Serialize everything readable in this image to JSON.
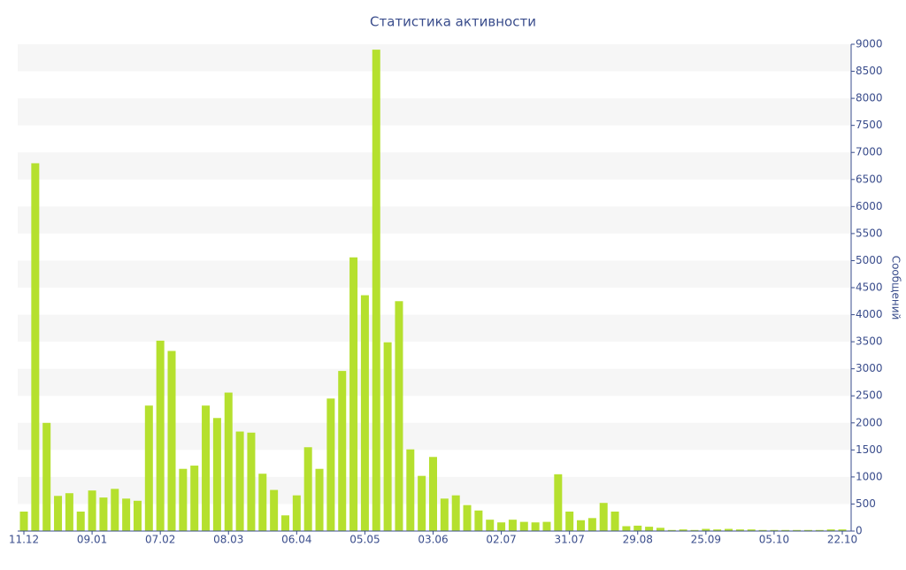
{
  "chart_data": {
    "type": "bar",
    "title": "Статистика активности",
    "y_axis_label": "Сообщений",
    "categories": [
      "11.12",
      null,
      null,
      null,
      null,
      null,
      "09.01",
      null,
      null,
      null,
      null,
      null,
      "07.02",
      null,
      null,
      null,
      null,
      null,
      "08.03",
      null,
      null,
      null,
      null,
      null,
      "06.04",
      null,
      null,
      null,
      null,
      null,
      "05.05",
      null,
      null,
      null,
      null,
      null,
      "03.06",
      null,
      null,
      null,
      null,
      null,
      "02.07",
      null,
      null,
      null,
      null,
      null,
      "31.07",
      null,
      null,
      null,
      null,
      null,
      "29.08",
      null,
      null,
      null,
      null,
      null,
      "25.09",
      null,
      null,
      null,
      null,
      null,
      "05.10",
      null,
      null,
      null,
      null,
      null,
      "22.10"
    ],
    "values": [
      360,
      6800,
      2000,
      650,
      700,
      360,
      750,
      620,
      780,
      600,
      560,
      2320,
      3520,
      3330,
      1150,
      1210,
      2320,
      2090,
      2560,
      1840,
      1820,
      1060,
      760,
      290,
      660,
      1550,
      1150,
      2450,
      2960,
      5060,
      4360,
      8900,
      3490,
      4250,
      1510,
      1020,
      1370,
      600,
      660,
      480,
      380,
      210,
      160,
      210,
      170,
      160,
      170,
      1050,
      360,
      200,
      240,
      520,
      360,
      90,
      100,
      80,
      60,
      20,
      30,
      20,
      40,
      30,
      40,
      30,
      30,
      20,
      20,
      20,
      20,
      20,
      20,
      30,
      30
    ],
    "color": "#b5e02e",
    "ylim": [
      0,
      9000
    ],
    "yticks": [
      0,
      500,
      1000,
      1500,
      2000,
      2500,
      3000,
      3500,
      4000,
      4500,
      5000,
      5500,
      6000,
      6500,
      7000,
      7500,
      8000,
      8500,
      9000
    ],
    "grid": true
  }
}
